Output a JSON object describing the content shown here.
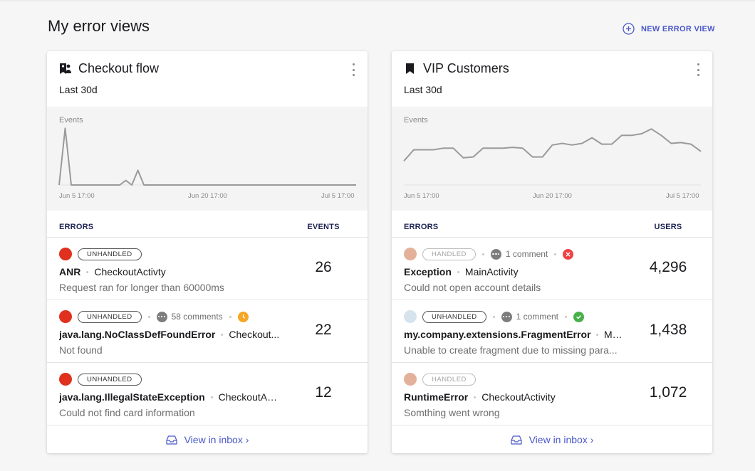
{
  "page": {
    "title": "My error views",
    "new_view_label": "NEW ERROR VIEW",
    "accent_color": "#4a58c8"
  },
  "cards": [
    {
      "title": "Checkout flow",
      "icon": "people-bookmark-icon",
      "range": "Last 30d",
      "chart_data": {
        "type": "line",
        "ylabel": "Events",
        "x_ticks": [
          "Jun 5 17:00",
          "Jun 20 17:00",
          "Jul 5 17:00"
        ],
        "values": [
          0,
          62,
          0,
          0,
          0,
          0,
          0,
          0,
          0,
          0,
          0,
          5,
          0,
          16,
          0,
          0,
          0,
          0,
          0,
          0,
          0,
          0,
          0,
          0,
          0,
          0,
          0,
          0,
          0,
          0,
          0,
          0,
          0,
          0,
          0,
          0,
          0,
          0,
          0,
          0,
          0,
          0,
          0,
          0,
          0,
          0,
          0,
          0,
          0,
          0
        ],
        "ylim": [
          0,
          70
        ]
      },
      "headers": {
        "errors": "ERRORS",
        "metric": "EVENTS"
      },
      "rows": [
        {
          "dot_color": "#e0301e",
          "badge": "UNHANDLED",
          "badge_type": "unhandled",
          "comments": "",
          "status": "",
          "name": "ANR",
          "location": "CheckoutActivty",
          "message": "Request ran for longer than 60000ms",
          "count": "26"
        },
        {
          "dot_color": "#e0301e",
          "badge": "UNHANDLED",
          "badge_type": "unhandled",
          "comments": "58 comments",
          "status": "clock",
          "status_color": "#f5a623",
          "name": "java.lang.NoClassDefFoundError",
          "location": "Checkout...",
          "message": "Not found",
          "count": "22"
        },
        {
          "dot_color": "#e0301e",
          "badge": "UNHANDLED",
          "badge_type": "unhandled",
          "comments": "",
          "status": "",
          "name": "java.lang.IllegalStateException",
          "location": "CheckoutAc...",
          "message": "Could not find card information",
          "count": "12"
        }
      ],
      "footer": "View in inbox ›"
    },
    {
      "title": "VIP Customers",
      "icon": "bookmark-icon",
      "range": "Last 30d",
      "chart_data": {
        "type": "line",
        "ylabel": "Events",
        "x_ticks": [
          "Jun 5 17:00",
          "Jun 20 17:00",
          "Jul 5 17:00"
        ],
        "values": [
          30,
          44,
          44,
          44,
          46,
          46,
          34,
          35,
          46,
          46,
          46,
          47,
          46,
          35,
          35,
          50,
          52,
          50,
          52,
          59,
          51,
          51,
          62,
          62,
          64,
          70,
          62,
          52,
          53,
          51,
          42
        ],
        "ylim": [
          0,
          80
        ]
      },
      "headers": {
        "errors": "ERRORS",
        "metric": "USERS"
      },
      "rows": [
        {
          "dot_color": "#e3b19a",
          "badge": "HANDLED",
          "badge_type": "handled",
          "comments": "1 comment",
          "status": "x",
          "status_color": "#ef4146",
          "name": "Exception",
          "location": "MainActivity",
          "message": "Could not open account details",
          "count": "4,296"
        },
        {
          "dot_color": "#d6e3ec",
          "badge": "UNHANDLED",
          "badge_type": "unhandled",
          "comments": "1 comment",
          "status": "check",
          "status_color": "#48b04a",
          "name": "my.company.extensions.FragmentError",
          "location": "Mai...",
          "message": "Unable to create fragment due to missing para...",
          "count": "1,438"
        },
        {
          "dot_color": "#e3b19a",
          "badge": "HANDLED",
          "badge_type": "handled",
          "comments": "",
          "status": "",
          "name": "RuntimeError",
          "location": "CheckoutActivity",
          "message": "Somthing went wrong",
          "count": "1,072"
        }
      ],
      "footer": "View in inbox ›"
    }
  ]
}
